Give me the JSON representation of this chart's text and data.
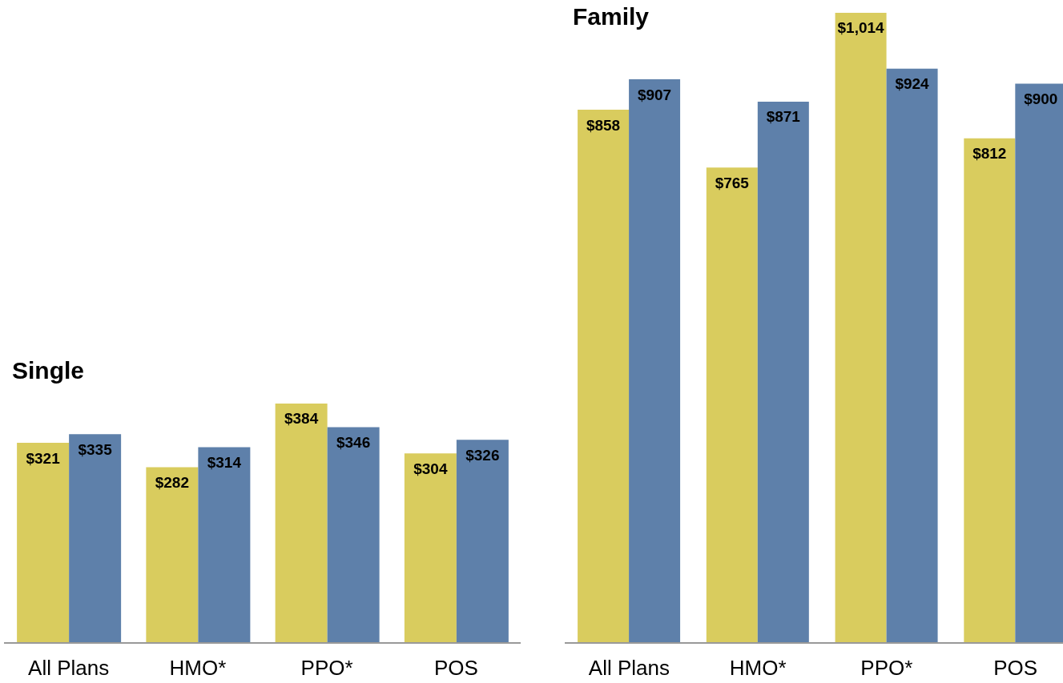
{
  "chart_data": [
    {
      "type": "bar",
      "title": "Single",
      "categories": [
        "All Plans",
        "HMO*",
        "PPO*",
        "POS"
      ],
      "tick_labels": "x",
      "grid": false,
      "legend": false,
      "series": [
        {
          "color": "#d9cc5e",
          "values": [
            321,
            282,
            384,
            304
          ],
          "value_labels": [
            "$321",
            "$282",
            "$384",
            "$304"
          ]
        },
        {
          "color": "#5e80aa",
          "values": [
            335,
            314,
            346,
            326
          ],
          "value_labels": [
            "$335",
            "$314",
            "$346",
            "$326"
          ]
        }
      ]
    },
    {
      "type": "bar",
      "title": "Family",
      "categories": [
        "All Plans",
        "HMO*",
        "PPO*",
        "POS"
      ],
      "tick_labels": "x",
      "grid": false,
      "legend": false,
      "series": [
        {
          "color": "#d9cc5e",
          "values": [
            858,
            765,
            1014,
            812
          ],
          "value_labels": [
            "$858",
            "$765",
            "$1,014",
            "$812"
          ]
        },
        {
          "color": "#5e80aa",
          "values": [
            907,
            871,
            924,
            900
          ],
          "value_labels": [
            "$907",
            "$871",
            "$924",
            "$900"
          ]
        }
      ]
    }
  ]
}
